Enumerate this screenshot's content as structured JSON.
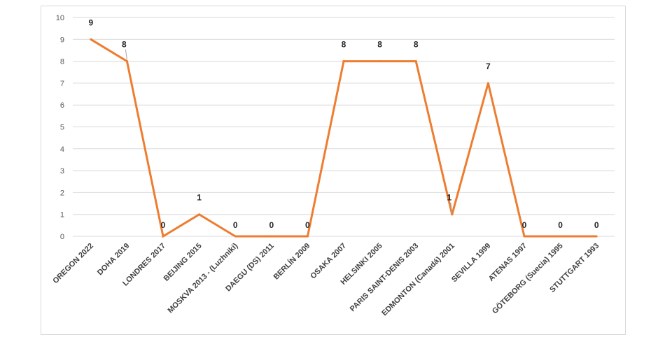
{
  "chart_data": {
    "type": "line",
    "categories": [
      "OREGON 2022",
      "DOHA 2019",
      "LONDRES 2017",
      "BEIJING 2015",
      "MOSKVA 2013 - (Luzhniki)",
      "DAEGU (DS) 2011",
      "BERLÍN 2009",
      "OSAKA 2007",
      "HELSINKI 2005",
      "PARIS SAINT-DENIS 2003",
      "EDMONTON (Canadá) 2001",
      "SEVILLA 1999",
      "ATENAS 1997",
      "GÖTEBORG (Suecia) 1995",
      "STUTTGART 1993"
    ],
    "values": [
      9,
      8,
      0,
      1,
      0,
      0,
      0,
      8,
      8,
      8,
      1,
      7,
      0,
      0,
      0
    ],
    "data_labels": [
      "9",
      "8",
      "0",
      "1",
      "0",
      "0",
      "0",
      "8",
      "8",
      "8",
      "1",
      "7",
      "0",
      "0",
      "0"
    ],
    "ylim": [
      0,
      10
    ],
    "yticks": [
      "0",
      "1",
      "2",
      "3",
      "4",
      "5",
      "6",
      "7",
      "8",
      "9",
      "10"
    ],
    "grid": true,
    "legend": "none",
    "line_color": "#ED7D31",
    "grid_color": "#d9d9d9",
    "leader_color": "#a6a6a6"
  }
}
